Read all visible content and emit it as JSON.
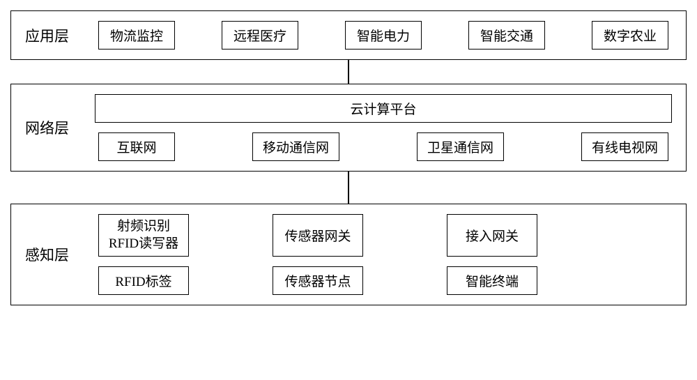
{
  "style": {
    "border_color": "#000000",
    "text_color": "#000000",
    "background_color": "#ffffff",
    "font_size_label": 21,
    "font_size_box": 19,
    "connector_height_1": 34,
    "connector_height_2": 46
  },
  "layers": {
    "application": {
      "label": "应用层",
      "items": [
        "物流监控",
        "远程医疗",
        "智能电力",
        "智能交通",
        "数字农业"
      ]
    },
    "network": {
      "label": "网络层",
      "platform": "云计算平台",
      "networks": [
        "互联网",
        "移动通信网",
        "卫星通信网",
        "有线电视网"
      ]
    },
    "perception": {
      "label": "感知层",
      "row1": [
        {
          "line1": "射频识别",
          "line2": "RFID读写器"
        },
        {
          "line1": "传感器网关"
        },
        {
          "line1": "接入网关"
        }
      ],
      "row2": [
        "RFID标签",
        "传感器节点",
        "智能终端"
      ]
    }
  }
}
